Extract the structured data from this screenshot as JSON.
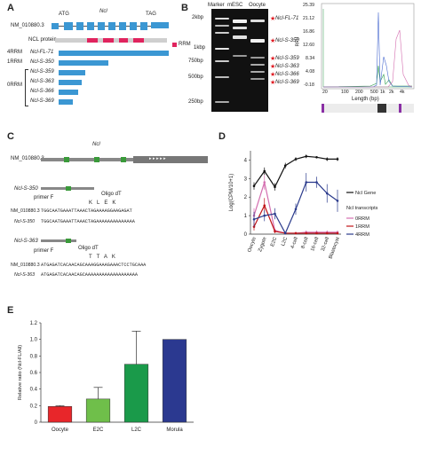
{
  "panel_a": {
    "letter": "A",
    "gene_id": "NM_010880.3",
    "start_codon": "ATG",
    "gene_name": "Ncl",
    "stop_codon": "TAG",
    "protein_label": "NCL protein",
    "rrm_legend": "RRM",
    "group_4rrm": "4RRM",
    "group_1rrm": "1RRM",
    "group_0rrm": "0RRM",
    "isoforms": [
      "Ncl-FL-71",
      "Ncl-S-350",
      "Ncl-S-359",
      "Ncl-S-363",
      "Ncl-S-366",
      "Ncl-S-369"
    ]
  },
  "panel_b": {
    "letter": "B",
    "lane_labels": [
      "Marker",
      "mESC",
      "Oocyte"
    ],
    "marker_labels": [
      "2kbp",
      "1kbp",
      "750bp",
      "500bp",
      "250bp"
    ],
    "band_labels": [
      "Ncl-FL-71",
      "Ncl-S-350",
      "Ncl-S-359",
      "Ncl-S-363",
      "Ncl-S-366",
      "Ncl-S-369"
    ],
    "bioanalyzer": {
      "ylabel": "RFU",
      "xlabel": "Length (bp)",
      "yticks": [
        "25.39",
        "21.12",
        "16.86",
        "12.60",
        "8.34",
        "4.08",
        "-0.18"
      ],
      "xticks": [
        "20",
        "100",
        "200",
        "500",
        "1k",
        "2k",
        "4k"
      ]
    }
  },
  "panel_c": {
    "letter": "C",
    "gene_id": "NM_010880.3",
    "gene_name": "Ncl",
    "isoform_1": "Ncl-S-350",
    "isoform_2": "Ncl-S-363",
    "oligo": "Oligo dT",
    "primer": "primer F",
    "aa_1": [
      "K",
      "L",
      "E",
      "K"
    ],
    "aa_2": [
      "T",
      "T",
      "A",
      "K"
    ],
    "seq_1_ref_label": "NM_010880.3",
    "seq_1_ref": "TGGCAATGAAATTAAACTAGAAAAGGAAGAGAT",
    "seq_1_iso_label": "Ncl-S-350",
    "seq_1_iso": "TGGCAATGAAATTAAACTAGAAAAAAAAAAAAAA",
    "seq_2_ref_label": "NM_010880.3",
    "seq_2_ref": "ATGAGATCACAACAGCAAAGGAAAGAAACTCCTGCAAA",
    "seq_2_iso_label": "Ncl-S-363",
    "seq_2_iso": "ATGAGATCACAACAGCAAAAAAAAAAAAAAAAAAA"
  },
  "panel_d": {
    "letter": "D",
    "legend_gene": "Ncl Gene",
    "legend_transcripts_title": "Ncl transcripts"
  },
  "panel_e": {
    "letter": "E"
  },
  "chart_data": [
    {
      "type": "line",
      "ylabel": "Log(CPM/10+1)",
      "categories": [
        "Oocyte",
        "Zygote",
        "E2C",
        "L2C",
        "4-cell",
        "8-cell",
        "16-cell",
        "32-cell",
        "Blastocyst"
      ],
      "ylim": [
        0,
        4.5
      ],
      "yticks": [
        0,
        1,
        2,
        3,
        4
      ],
      "series": [
        {
          "name": "Ncl Gene",
          "color": "#111111",
          "values": [
            2.6,
            3.4,
            2.55,
            3.7,
            4.05,
            4.2,
            4.15,
            4.05,
            4.05
          ]
        },
        {
          "name": "0RRM",
          "color": "#d46fb0",
          "values": [
            1.0,
            2.8,
            0.2,
            0.05,
            0.05,
            0.1,
            0.1,
            0.1,
            0.1
          ]
        },
        {
          "name": "1RRM",
          "color": "#c01418",
          "values": [
            0.4,
            1.55,
            0.15,
            0.05,
            0.05,
            0.05,
            0.05,
            0.05,
            0.05
          ]
        },
        {
          "name": "4RRM",
          "color": "#2a3a8c",
          "values": [
            0.8,
            1.0,
            1.1,
            0.05,
            1.35,
            2.8,
            2.8,
            2.2,
            1.8
          ]
        }
      ],
      "errors": [
        [
          0.2,
          0.2,
          0.2,
          0.15,
          0.1,
          0.1,
          0.05,
          0.1,
          0.1
        ],
        [
          0.4,
          0.4,
          0.1,
          0.05,
          0.05,
          0.1,
          0.1,
          0.1,
          0.1
        ],
        [
          0.2,
          0.4,
          0.1,
          0.05,
          0.05,
          0.05,
          0.05,
          0.05,
          0.05
        ],
        [
          0.4,
          0.3,
          0.3,
          0.05,
          0.3,
          0.5,
          0.3,
          0.5,
          0.6
        ]
      ]
    },
    {
      "type": "bar",
      "ylabel": "Relative ratio (Ncl-FL/All)",
      "categories": [
        "Oocyte",
        "E2C",
        "L2C",
        "Morula"
      ],
      "values": [
        0.19,
        0.28,
        0.7,
        1.0
      ],
      "errors": [
        0.01,
        0.14,
        0.4,
        0
      ],
      "colors": [
        "#e8262a",
        "#6fbf4a",
        "#1a9a4a",
        "#2b3990"
      ],
      "ylim": [
        0,
        1.2
      ],
      "yticks": [
        "0",
        "0.2",
        "0.4",
        "0.6",
        "0.8",
        "1.0",
        "1.2"
      ]
    }
  ]
}
